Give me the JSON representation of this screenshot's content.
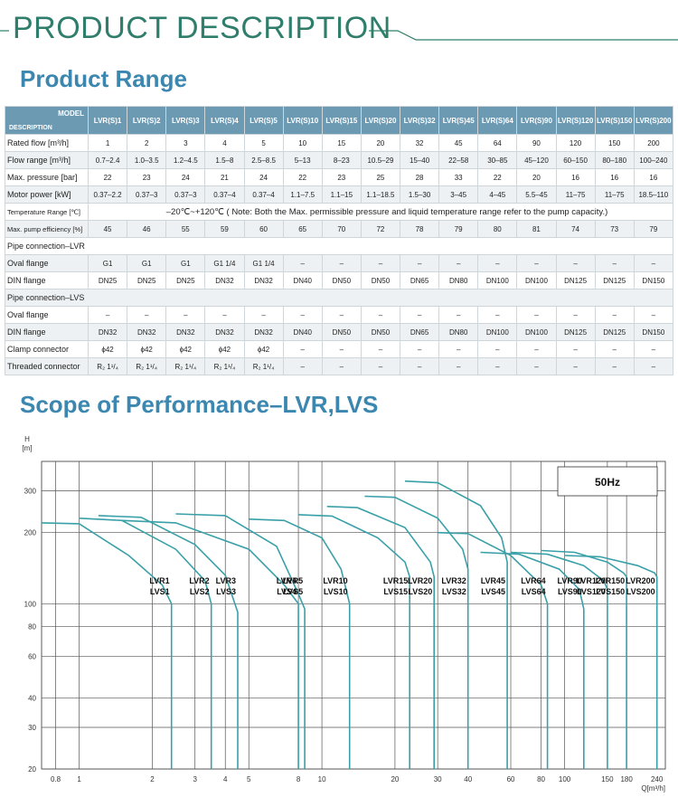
{
  "header": {
    "title": "PRODUCT DESCRIPTION",
    "line_color": "#2f7d6b"
  },
  "range_title": "Product Range",
  "perf_title": "Scope of Performance–LVR,LVS",
  "table": {
    "corner_model": "MODEL",
    "corner_desc": "DESCRIPTION",
    "models": [
      "LVR(S)1",
      "LVR(S)2",
      "LVR(S)3",
      "LVR(S)4",
      "LVR(S)5",
      "LVR(S)10",
      "LVR(S)15",
      "LVR(S)20",
      "LVR(S)32",
      "LVR(S)45",
      "LVR(S)64",
      "LVR(S)90",
      "LVR(S)120",
      "LVR(S)150",
      "LVR(S)200"
    ],
    "rows": [
      {
        "label": "Rated flow [m³/h]",
        "values": [
          "1",
          "2",
          "3",
          "4",
          "5",
          "10",
          "15",
          "20",
          "32",
          "45",
          "64",
          "90",
          "120",
          "150",
          "200"
        ]
      },
      {
        "label": "Flow range [m³/h]",
        "values": [
          "0.7–2.4",
          "1.0–3.5",
          "1.2–4.5",
          "1.5–8",
          "2.5–8.5",
          "5–13",
          "8–23",
          "10.5–29",
          "15–40",
          "22–58",
          "30–85",
          "45–120",
          "60–150",
          "80–180",
          "100–240"
        ]
      },
      {
        "label": "Max. pressure [bar]",
        "values": [
          "22",
          "23",
          "24",
          "21",
          "24",
          "22",
          "23",
          "25",
          "28",
          "33",
          "22",
          "20",
          "16",
          "16",
          "16"
        ]
      },
      {
        "label": "Motor power [kW]",
        "values": [
          "0.37–2.2",
          "0.37–3",
          "0.37–3",
          "0.37–4",
          "0.37–4",
          "1.1–7.5",
          "1.1–15",
          "1.1–18.5",
          "1.5–30",
          "3–45",
          "4–45",
          "5.5–45",
          "11–75",
          "11–75",
          "18.5–110"
        ]
      }
    ],
    "temp_label": "Temperature Range [℃]",
    "temp_text": "–20℃~+120℃ ( Note: Both the Max. permissible pressure and liquid temperature range refer to the pump capacity.)",
    "eff_label": "Max. pump efficiency [%]",
    "eff_values": [
      "45",
      "46",
      "55",
      "59",
      "60",
      "65",
      "70",
      "72",
      "78",
      "79",
      "80",
      "81",
      "74",
      "73",
      "79"
    ],
    "lvr_section": "Pipe connection–LVR",
    "lvr_rows": [
      {
        "label": "Oval flange",
        "values": [
          "G1",
          "G1",
          "G1",
          "G1 1/4",
          "G1 1/4",
          "–",
          "–",
          "–",
          "–",
          "–",
          "–",
          "–",
          "–",
          "–",
          "–"
        ]
      },
      {
        "label": "DIN flange",
        "values": [
          "DN25",
          "DN25",
          "DN25",
          "DN32",
          "DN32",
          "DN40",
          "DN50",
          "DN50",
          "DN65",
          "DN80",
          "DN100",
          "DN100",
          "DN125",
          "DN125",
          "DN150"
        ]
      }
    ],
    "lvs_section": "Pipe connection–LVS",
    "lvs_rows": [
      {
        "label": "Oval flange",
        "values": [
          "–",
          "–",
          "–",
          "–",
          "–",
          "–",
          "–",
          "–",
          "–",
          "–",
          "–",
          "–",
          "–",
          "–",
          "–"
        ]
      },
      {
        "label": "DIN flange",
        "values": [
          "DN32",
          "DN32",
          "DN32",
          "DN32",
          "DN32",
          "DN40",
          "DN50",
          "DN50",
          "DN65",
          "DN80",
          "DN100",
          "DN100",
          "DN125",
          "DN125",
          "DN150"
        ]
      },
      {
        "label": "Clamp connector",
        "values": [
          "ϕ42",
          "ϕ42",
          "ϕ42",
          "ϕ42",
          "ϕ42",
          "–",
          "–",
          "–",
          "–",
          "–",
          "–",
          "–",
          "–",
          "–",
          "–"
        ]
      },
      {
        "label": "Threaded connector",
        "values": [
          "R₂ 1¹/₄",
          "R₂ 1¹/₄",
          "R₂ 1¹/₄",
          "R₂ 1¹/₄",
          "R₂ 1¹/₄",
          "–",
          "–",
          "–",
          "–",
          "–",
          "–",
          "–",
          "–",
          "–",
          "–"
        ]
      }
    ]
  },
  "chart_data": {
    "type": "line",
    "title": "",
    "xlabel": "Q[m³/h]",
    "ylabel": "H [m]",
    "xscale": "log",
    "yscale": "log",
    "xlim": [
      0.7,
      260
    ],
    "ylim": [
      20,
      400
    ],
    "x_ticks": [
      0.8,
      1,
      2,
      3,
      4,
      5,
      8,
      10,
      20,
      30,
      40,
      60,
      80,
      100,
      150,
      180,
      240
    ],
    "x_tick_labels": [
      "0.8",
      "1",
      "2",
      "3",
      "4",
      "5",
      "8",
      "10",
      "20",
      "30",
      "40",
      "60",
      "80",
      "100",
      "150",
      "180",
      "240"
    ],
    "y_ticks": [
      20,
      30,
      40,
      60,
      80,
      100,
      200,
      300
    ],
    "y_tick_labels": [
      "20",
      "30",
      "40",
      "60",
      "80",
      "100",
      "200",
      "300"
    ],
    "frequency_label": "50Hz",
    "series": [
      {
        "name": "LVR1 LVS1",
        "label_top": "LVR1",
        "label_bottom": "LVS1",
        "points": [
          [
            0.7,
            220
          ],
          [
            1.0,
            218
          ],
          [
            1.6,
            160
          ],
          [
            2.2,
            120
          ],
          [
            2.4,
            100
          ],
          [
            2.4,
            20
          ]
        ]
      },
      {
        "name": "LVR2 LVS2",
        "label_top": "LVR2",
        "label_bottom": "LVS2",
        "points": [
          [
            1.0,
            230
          ],
          [
            1.5,
            225
          ],
          [
            2.5,
            170
          ],
          [
            3.3,
            125
          ],
          [
            3.5,
            100
          ],
          [
            3.5,
            20
          ]
        ]
      },
      {
        "name": "LVR3 LVS3",
        "label_top": "LVR3",
        "label_bottom": "LVS3",
        "points": [
          [
            1.2,
            236
          ],
          [
            1.8,
            232
          ],
          [
            3.0,
            178
          ],
          [
            4.0,
            132
          ],
          [
            4.5,
            92
          ],
          [
            4.5,
            20
          ]
        ]
      },
      {
        "name": "LVR4 LVS4",
        "label_top": "LVR4",
        "label_bottom": "LVS4",
        "points": [
          [
            1.5,
            225
          ],
          [
            2.5,
            220
          ],
          [
            5.0,
            170
          ],
          [
            7.0,
            120
          ],
          [
            8.0,
            100
          ],
          [
            8.0,
            20
          ]
        ]
      },
      {
        "name": "LVR5 LVS5",
        "label_top": "LVR5",
        "label_bottom": "LVS5",
        "points": [
          [
            2.5,
            240
          ],
          [
            4.0,
            236
          ],
          [
            6.5,
            175
          ],
          [
            8.0,
            110
          ],
          [
            8.5,
            95
          ],
          [
            8.5,
            20
          ]
        ]
      },
      {
        "name": "LVR10 LVS10",
        "label_top": "LVR10",
        "label_bottom": "LVS10",
        "points": [
          [
            5.0,
            228
          ],
          [
            7.0,
            225
          ],
          [
            10.0,
            190
          ],
          [
            12.0,
            140
          ],
          [
            13.0,
            100
          ],
          [
            13.0,
            20
          ]
        ]
      },
      {
        "name": "LVR15 LVS15",
        "label_top": "LVR15",
        "label_bottom": "LVS15",
        "points": [
          [
            8.0,
            238
          ],
          [
            11.0,
            235
          ],
          [
            17.0,
            190
          ],
          [
            22.0,
            150
          ],
          [
            23.0,
            130
          ],
          [
            23.0,
            20
          ]
        ]
      },
      {
        "name": "LVR20 LVS20",
        "label_top": "LVR20",
        "label_bottom": "LVS20",
        "points": [
          [
            10.5,
            258
          ],
          [
            14.0,
            255
          ],
          [
            22.0,
            210
          ],
          [
            28.0,
            150
          ],
          [
            29.0,
            130
          ],
          [
            29.0,
            20
          ]
        ]
      },
      {
        "name": "LVR32 LVS32",
        "label_top": "LVR32",
        "label_bottom": "LVS32",
        "points": [
          [
            15.0,
            285
          ],
          [
            20.0,
            282
          ],
          [
            30.0,
            230
          ],
          [
            38.0,
            170
          ],
          [
            40.0,
            140
          ],
          [
            40.0,
            20
          ]
        ]
      },
      {
        "name": "LVR45 LVS45",
        "label_top": "LVR45",
        "label_bottom": "LVS45",
        "points": [
          [
            22.0,
            330
          ],
          [
            30.0,
            325
          ],
          [
            45.0,
            260
          ],
          [
            55.0,
            190
          ],
          [
            58.0,
            150
          ],
          [
            58.0,
            20
          ]
        ]
      },
      {
        "name": "LVR64 LVS64",
        "label_top": "LVR64",
        "label_bottom": "LVS64",
        "points": [
          [
            30.0,
            200
          ],
          [
            40.0,
            198
          ],
          [
            60.0,
            160
          ],
          [
            80.0,
            120
          ],
          [
            85.0,
            100
          ],
          [
            85.0,
            20
          ]
        ]
      },
      {
        "name": "LVR90 LVS90",
        "label_top": "LVR90",
        "label_bottom": "LVS90",
        "points": [
          [
            45.0,
            165
          ],
          [
            65.0,
            162
          ],
          [
            95.0,
            140
          ],
          [
            115.0,
            115
          ],
          [
            120.0,
            95
          ],
          [
            120.0,
            20
          ]
        ]
      },
      {
        "name": "LVR120 LVS120",
        "label_top": "LVR120",
        "label_bottom": "LVS120",
        "points": [
          [
            60.0,
            165
          ],
          [
            85.0,
            162
          ],
          [
            120.0,
            145
          ],
          [
            145.0,
            125
          ],
          [
            150.0,
            115
          ],
          [
            150.0,
            20
          ]
        ]
      },
      {
        "name": "LVR150 LVS150",
        "label_top": "LVR150",
        "label_bottom": "LVS150",
        "points": [
          [
            80.0,
            168
          ],
          [
            110.0,
            165
          ],
          [
            150.0,
            150
          ],
          [
            175.0,
            135
          ],
          [
            180.0,
            130
          ],
          [
            180.0,
            20
          ]
        ]
      },
      {
        "name": "LVR200 LVS200",
        "label_top": "LVR200",
        "label_bottom": "LVS200",
        "points": [
          [
            100.0,
            160
          ],
          [
            140.0,
            158
          ],
          [
            200.0,
            145
          ],
          [
            235.0,
            135
          ],
          [
            240.0,
            130
          ],
          [
            240.0,
            20
          ]
        ]
      }
    ],
    "curve_color": "#3aa0a8"
  }
}
